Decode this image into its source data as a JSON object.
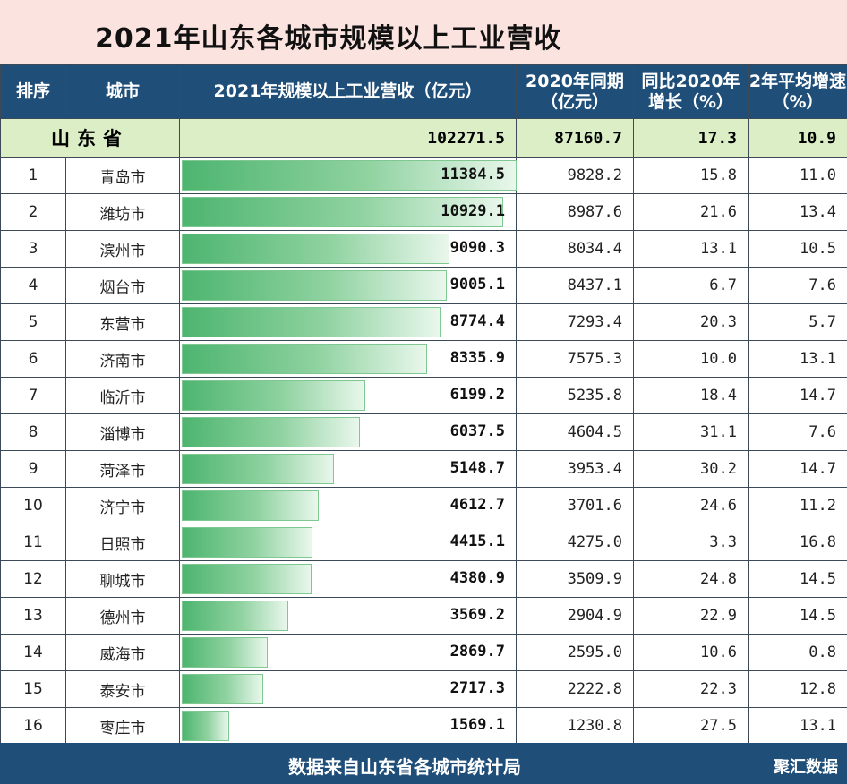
{
  "title": "2021年山东各城市规模以上工业营收",
  "headers": {
    "rank": "排序",
    "city": "城市",
    "rev2021": "2021年规模以上工业营收（亿元）",
    "rev2020": "2020年同期（亿元）",
    "growth": "同比2020年增长（%）",
    "avg": "2年平均增速（%）"
  },
  "province": {
    "name": "山东省",
    "rev2021": "102271.5",
    "rev2020": "87160.7",
    "growth": "17.3",
    "avg": "10.9"
  },
  "rows": [
    {
      "rank": "1",
      "city": "青岛市",
      "rev2021": "11384.5",
      "rev2020": "9828.2",
      "growth": "15.8",
      "avg": "11.0"
    },
    {
      "rank": "2",
      "city": "潍坊市",
      "rev2021": "10929.1",
      "rev2020": "8987.6",
      "growth": "21.6",
      "avg": "13.4"
    },
    {
      "rank": "3",
      "city": "滨州市",
      "rev2021": "9090.3",
      "rev2020": "8034.4",
      "growth": "13.1",
      "avg": "10.5"
    },
    {
      "rank": "4",
      "city": "烟台市",
      "rev2021": "9005.1",
      "rev2020": "8437.1",
      "growth": "6.7",
      "avg": "7.6"
    },
    {
      "rank": "5",
      "city": "东营市",
      "rev2021": "8774.4",
      "rev2020": "7293.4",
      "growth": "20.3",
      "avg": "5.7"
    },
    {
      "rank": "6",
      "city": "济南市",
      "rev2021": "8335.9",
      "rev2020": "7575.3",
      "growth": "10.0",
      "avg": "13.1"
    },
    {
      "rank": "7",
      "city": "临沂市",
      "rev2021": "6199.2",
      "rev2020": "5235.8",
      "growth": "18.4",
      "avg": "14.7"
    },
    {
      "rank": "8",
      "city": "淄博市",
      "rev2021": "6037.5",
      "rev2020": "4604.5",
      "growth": "31.1",
      "avg": "7.6"
    },
    {
      "rank": "9",
      "city": "菏泽市",
      "rev2021": "5148.7",
      "rev2020": "3953.4",
      "growth": "30.2",
      "avg": "14.7"
    },
    {
      "rank": "10",
      "city": "济宁市",
      "rev2021": "4612.7",
      "rev2020": "3701.6",
      "growth": "24.6",
      "avg": "11.2"
    },
    {
      "rank": "11",
      "city": "日照市",
      "rev2021": "4415.1",
      "rev2020": "4275.0",
      "growth": "3.3",
      "avg": "16.8"
    },
    {
      "rank": "12",
      "city": "聊城市",
      "rev2021": "4380.9",
      "rev2020": "3509.9",
      "growth": "24.8",
      "avg": "14.5"
    },
    {
      "rank": "13",
      "city": "德州市",
      "rev2021": "3569.2",
      "rev2020": "2904.9",
      "growth": "22.9",
      "avg": "14.5"
    },
    {
      "rank": "14",
      "city": "威海市",
      "rev2021": "2869.7",
      "rev2020": "2595.0",
      "growth": "10.6",
      "avg": "0.8"
    },
    {
      "rank": "15",
      "city": "泰安市",
      "rev2021": "2717.3",
      "rev2020": "2222.8",
      "growth": "22.3",
      "avg": "12.8"
    },
    {
      "rank": "16",
      "city": "枣庄市",
      "rev2021": "1569.1",
      "rev2020": "1230.8",
      "growth": "27.5",
      "avg": "13.1"
    }
  ],
  "footer": {
    "source": "数据来自山东省各城市统计局",
    "brand": "聚汇数据"
  },
  "chart_data": {
    "type": "bar",
    "categories": [
      "青岛市",
      "潍坊市",
      "滨州市",
      "烟台市",
      "东营市",
      "济南市",
      "临沂市",
      "淄博市",
      "菏泽市",
      "济宁市",
      "日照市",
      "聊城市",
      "德州市",
      "威海市",
      "泰安市",
      "枣庄市"
    ],
    "values": [
      11384.5,
      10929.1,
      9090.3,
      9005.1,
      8774.4,
      8335.9,
      6199.2,
      6037.5,
      5148.7,
      4612.7,
      4415.1,
      4380.9,
      3569.2,
      2869.7,
      2717.3,
      1569.1
    ],
    "title": "2021年规模以上工业营收（亿元）",
    "colors": {
      "bar": "#5cbf7b",
      "header": "#1f4e79",
      "province_row": "#dbeec6"
    }
  }
}
